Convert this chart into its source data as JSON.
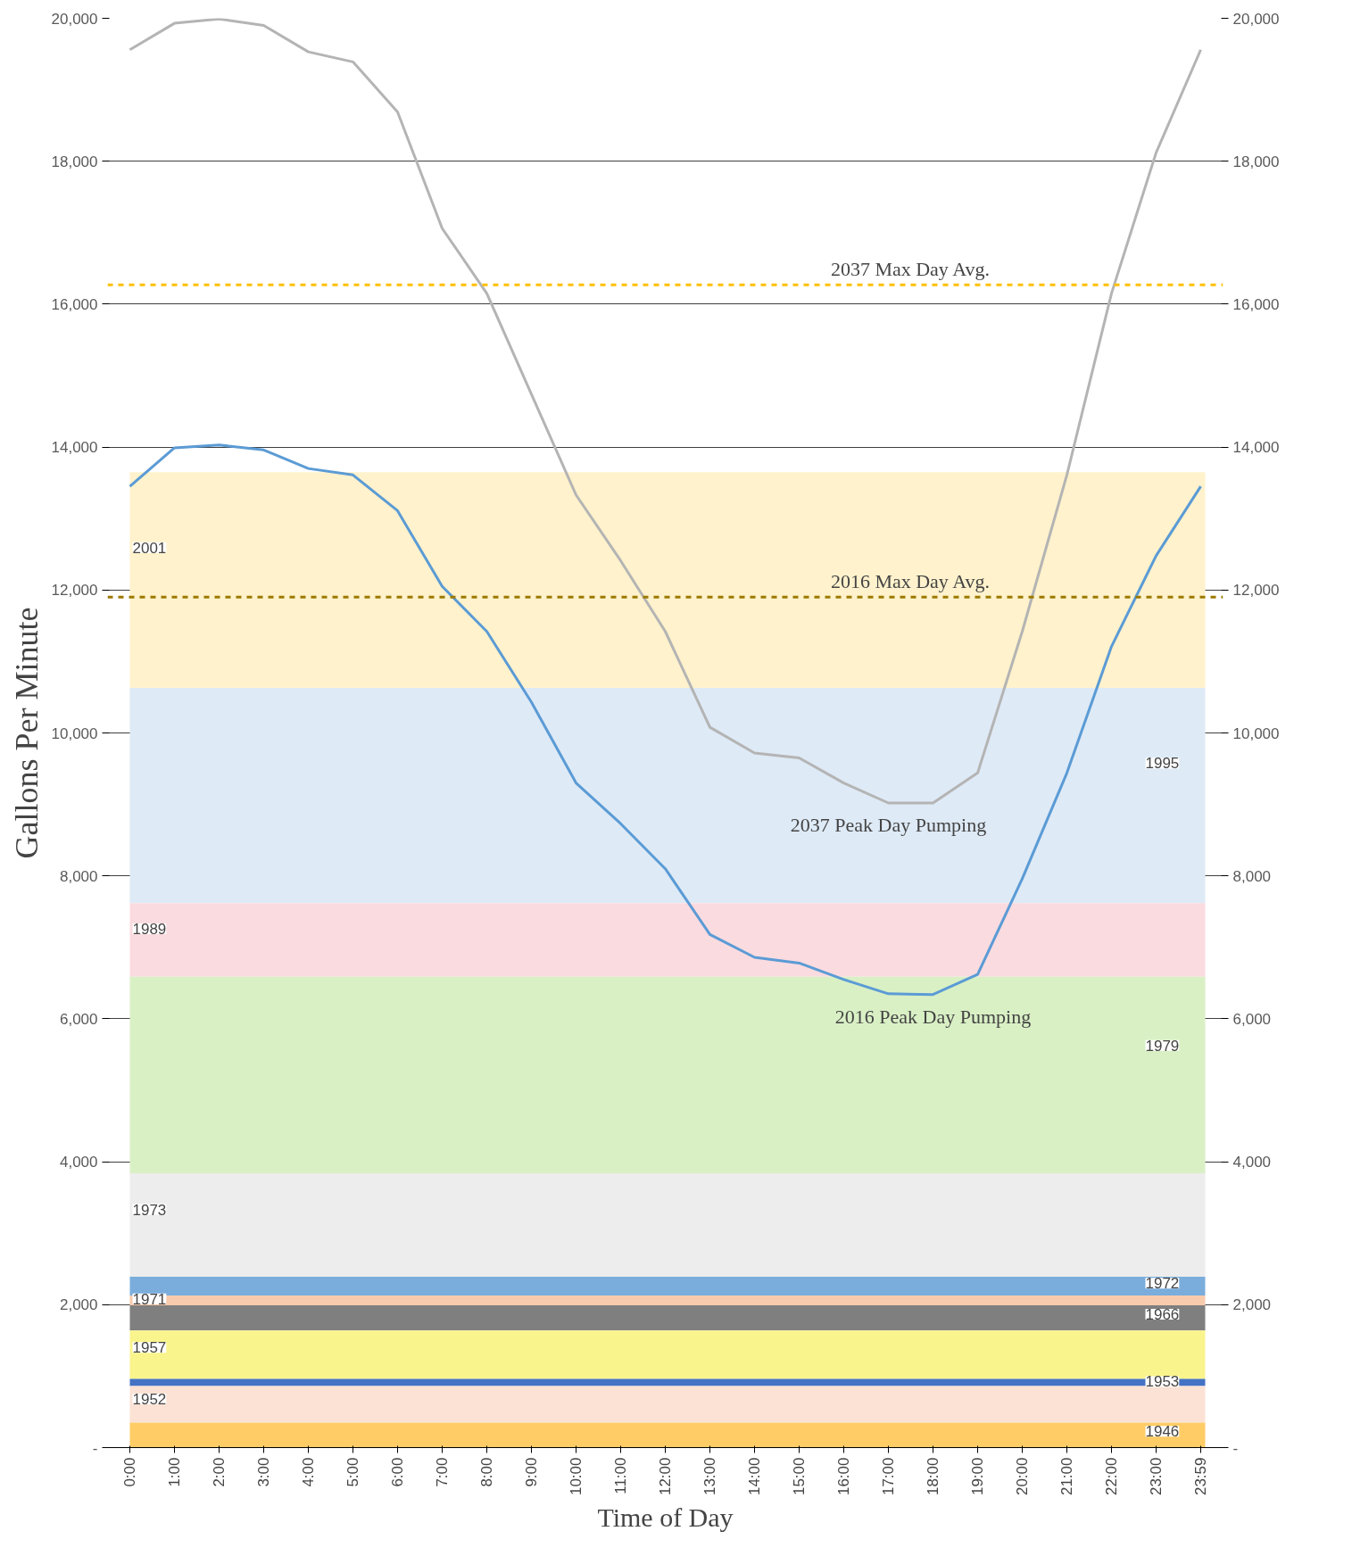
{
  "chart_data": {
    "type": "line",
    "xlabel": "Time of Day",
    "ylabel": "Gallons Per Minute",
    "categories": [
      "0:00",
      "1:00",
      "2:00",
      "3:00",
      "4:00",
      "5:00",
      "6:00",
      "7:00",
      "8:00",
      "9:00",
      "10:00",
      "11:00",
      "12:00",
      "13:00",
      "14:00",
      "15:00",
      "16:00",
      "17:00",
      "18:00",
      "19:00",
      "20:00",
      "21:00",
      "22:00",
      "23:00",
      "23:59"
    ],
    "series": [
      {
        "name": "2037 Peak Day Pumping",
        "color": "#b4b4b4",
        "values": [
          19560,
          19930,
          19990,
          19900,
          19530,
          19390,
          18690,
          17060,
          16150,
          14740,
          13330,
          12410,
          11420,
          10080,
          9720,
          9650,
          9300,
          9020,
          9020,
          9440,
          11420,
          13610,
          16150,
          18120,
          19560
        ]
      },
      {
        "name": "2016 Peak Day Pumping",
        "color": "#5b9bd5",
        "values": [
          13450,
          13990,
          14030,
          13960,
          13700,
          13610,
          13110,
          12050,
          11420,
          10430,
          9300,
          8730,
          8100,
          7180,
          6860,
          6780,
          6550,
          6350,
          6340,
          6620,
          7960,
          9440,
          11210,
          12480,
          13450
        ]
      }
    ],
    "ylim": [
      0,
      20000
    ],
    "yticks": [
      {
        "value": 0,
        "label": "-"
      },
      {
        "value": 2000,
        "label": "2,000"
      },
      {
        "value": 4000,
        "label": "4,000"
      },
      {
        "value": 6000,
        "label": "6,000"
      },
      {
        "value": 8000,
        "label": "8,000"
      },
      {
        "value": 10000,
        "label": "10,000"
      },
      {
        "value": 12000,
        "label": "12,000"
      },
      {
        "value": 14000,
        "label": "14,000"
      },
      {
        "value": 16000,
        "label": "16,000"
      },
      {
        "value": 18000,
        "label": "18,000"
      },
      {
        "value": 20000,
        "label": "20,000"
      }
    ],
    "y2lim": [
      0,
      20000
    ],
    "y2ticks": [
      {
        "value": 0,
        "label": "-"
      },
      {
        "value": 2000,
        "label": "2,000"
      },
      {
        "value": 4000,
        "label": "4,000"
      },
      {
        "value": 6000,
        "label": "6,000"
      },
      {
        "value": 8000,
        "label": "8,000"
      },
      {
        "value": 10000,
        "label": "10,000"
      },
      {
        "value": 12000,
        "label": "12,000"
      },
      {
        "value": 14000,
        "label": "14,000"
      },
      {
        "value": 16000,
        "label": "16,000"
      },
      {
        "value": 18000,
        "label": "18,000"
      },
      {
        "value": 20000,
        "label": "20,000"
      }
    ],
    "grid": "y",
    "line_style": "solid",
    "ref_lines": [
      {
        "axis": "y",
        "value": 16270,
        "label": "2037 Max Day Avg.",
        "color": "#ffc000",
        "line_style": "dashed"
      },
      {
        "axis": "y",
        "value": 11900,
        "label": "2016 Max Day Avg.",
        "color": "#9c7a00",
        "line_style": "dashed"
      }
    ],
    "bands": [
      {
        "axis": "y",
        "from": 10630,
        "to": 13650,
        "label": "2001",
        "color": "#fff2cc"
      },
      {
        "axis": "y",
        "from": 7620,
        "to": 10630,
        "label": "1995",
        "color": "#deeaf6"
      },
      {
        "axis": "y",
        "from": 6590,
        "to": 7620,
        "label": "1989",
        "color": "#fadbe0"
      },
      {
        "axis": "y",
        "from": 3840,
        "to": 6590,
        "label": "1979",
        "color": "#d9f0c5"
      },
      {
        "axis": "y",
        "from": 2390,
        "to": 3840,
        "label": "1973",
        "color": "#ededed"
      },
      {
        "axis": "y",
        "from": 2130,
        "to": 2390,
        "label": "1972",
        "color": "#7aaddc"
      },
      {
        "axis": "y",
        "from": 1990,
        "to": 2130,
        "label": "1971",
        "color": "#f8cbad"
      },
      {
        "axis": "y",
        "from": 1640,
        "to": 1990,
        "label": "1966",
        "color": "#7f7f7f"
      },
      {
        "axis": "y",
        "from": 960,
        "to": 1640,
        "label": "1957",
        "color": "#f9f48c"
      },
      {
        "axis": "y",
        "from": 860,
        "to": 960,
        "label": "1953",
        "color": "#4472c4"
      },
      {
        "axis": "y",
        "from": 350,
        "to": 860,
        "label": "1952",
        "color": "#fbe2d5"
      },
      {
        "axis": "y",
        "from": 0,
        "to": 350,
        "label": "1946",
        "color": "#ffcc66"
      }
    ]
  }
}
